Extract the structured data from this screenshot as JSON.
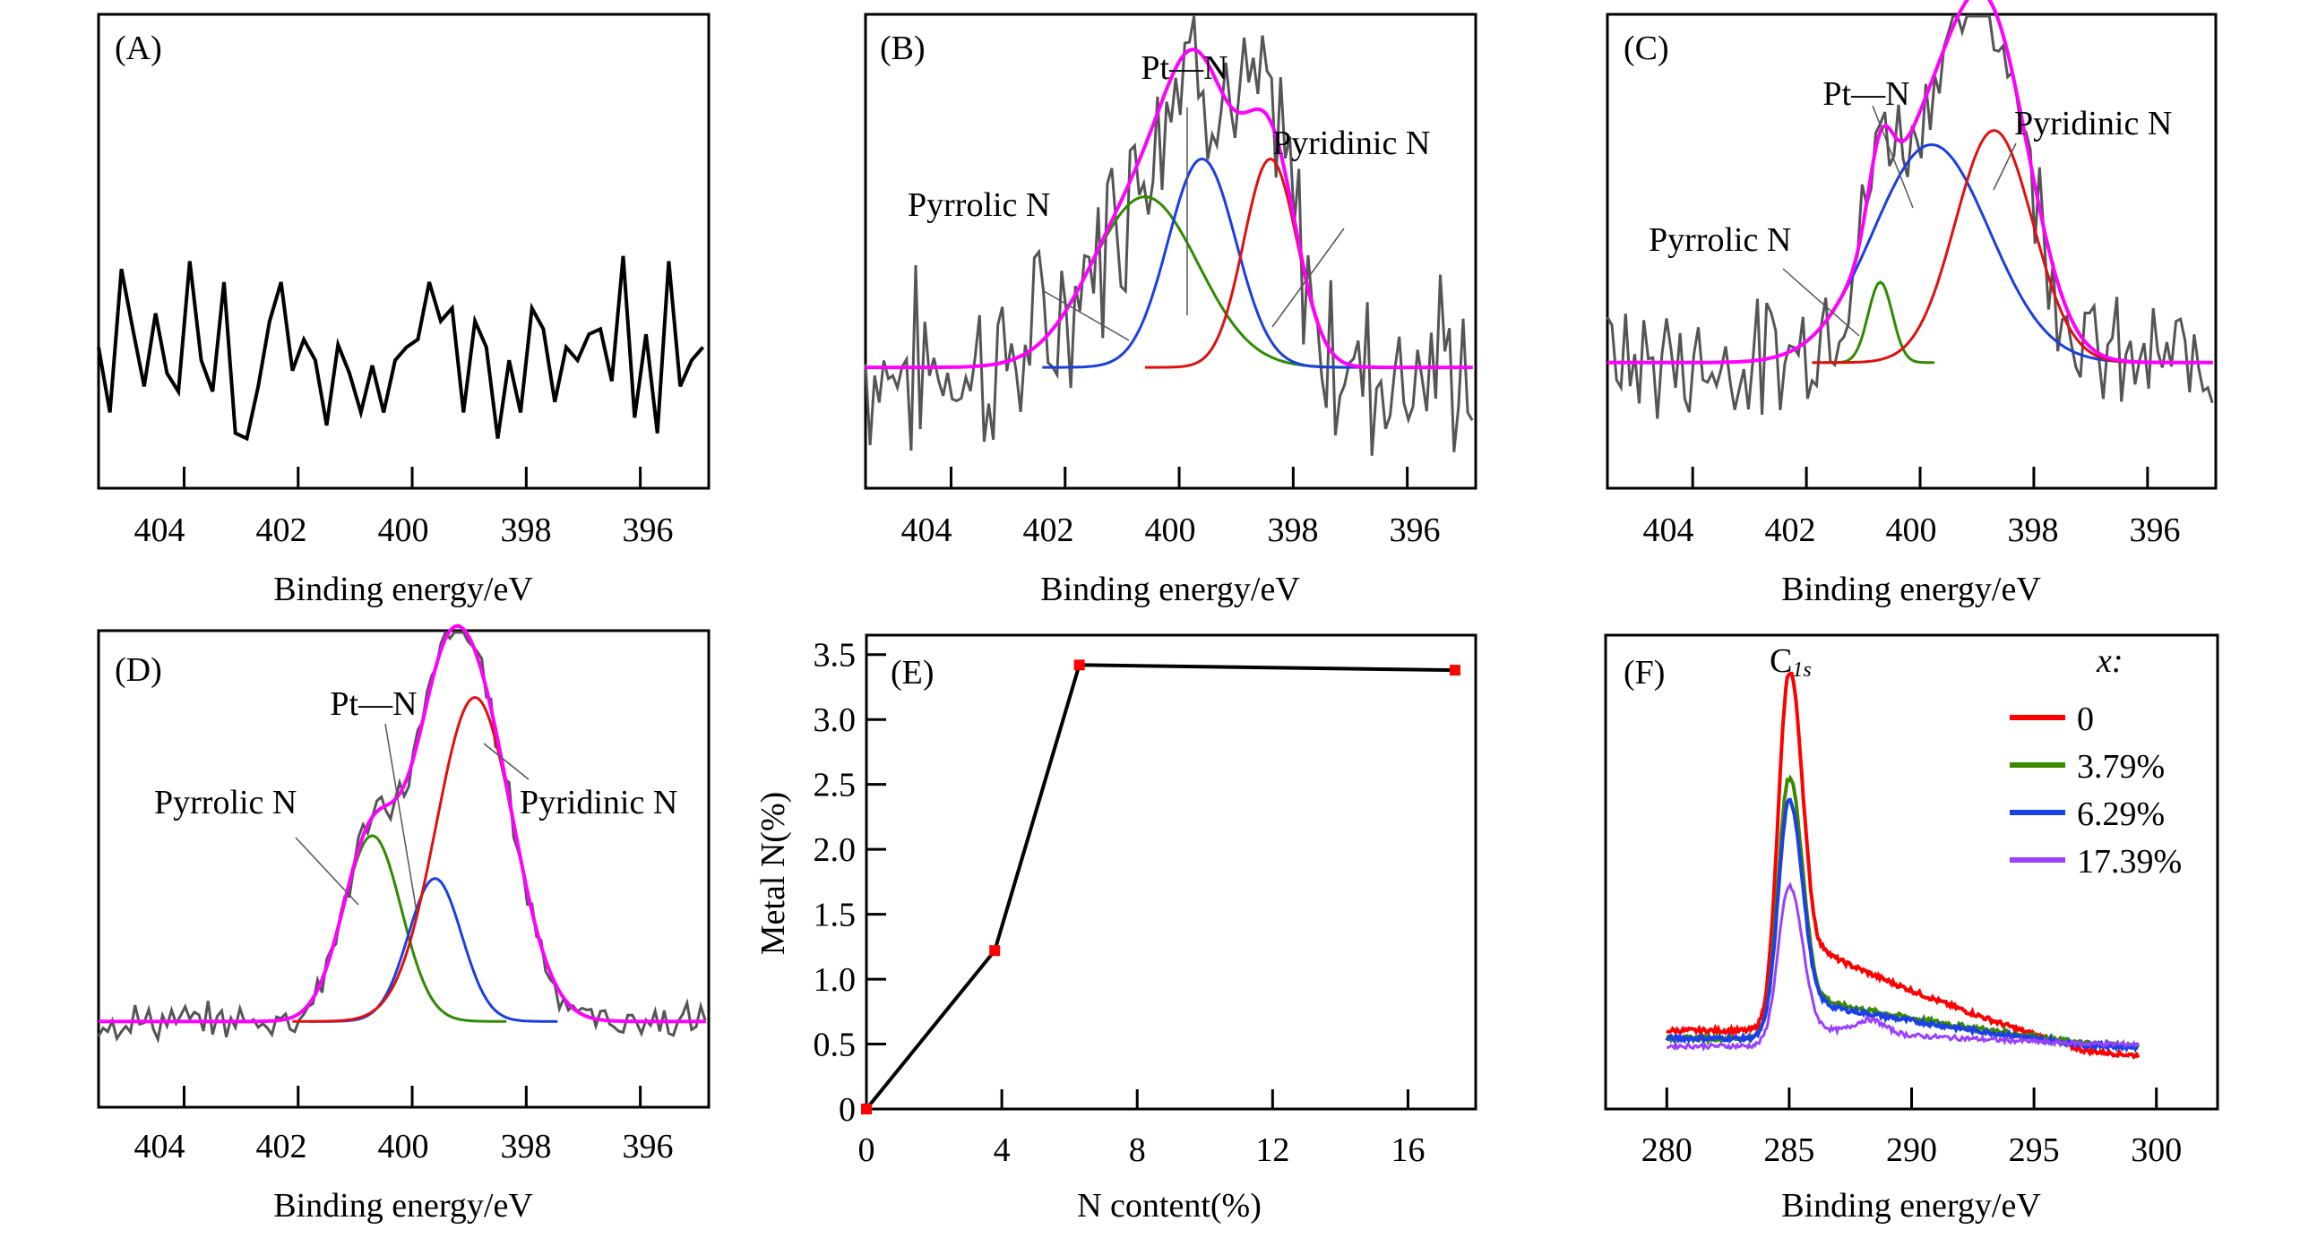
{
  "chart_data": [
    {
      "id": "A",
      "type": "line",
      "panel_label": "(A)",
      "xlabel": "Binding energy/eV",
      "ylabel": "",
      "xlim": [
        405.5,
        394.8
      ],
      "x_reversed": true,
      "xticks": [
        404,
        402,
        400,
        398,
        396
      ],
      "series": [
        {
          "name": "raw",
          "color": "#000000",
          "x": [
            405.5,
            405.3,
            405.1,
            404.9,
            404.7,
            404.5,
            404.3,
            404.1,
            403.9,
            403.7,
            403.5,
            403.3,
            403.1,
            402.9,
            402.7,
            402.5,
            402.3,
            402.1,
            401.9,
            401.7,
            401.5,
            401.3,
            401.1,
            400.9,
            400.7,
            400.5,
            400.3,
            400.1,
            399.9,
            399.7,
            399.5,
            399.3,
            399.1,
            398.9,
            398.7,
            398.5,
            398.3,
            398.1,
            397.9,
            397.7,
            397.5,
            397.3,
            397.1,
            396.9,
            396.7,
            396.5,
            396.3,
            396.1,
            395.9,
            395.7,
            395.5,
            395.3,
            395.1,
            394.9
          ],
          "y": [
            0.45,
            0.2,
            0.75,
            0.52,
            0.3,
            0.58,
            0.35,
            0.28,
            0.78,
            0.4,
            0.28,
            0.7,
            0.12,
            0.1,
            0.3,
            0.55,
            0.7,
            0.36,
            0.48,
            0.4,
            0.15,
            0.46,
            0.35,
            0.2,
            0.38,
            0.2,
            0.4,
            0.45,
            0.48,
            0.7,
            0.55,
            0.6,
            0.2,
            0.55,
            0.45,
            0.1,
            0.4,
            0.2,
            0.6,
            0.52,
            0.24,
            0.45,
            0.4,
            0.5,
            0.52,
            0.32,
            0.8,
            0.18,
            0.5,
            0.12,
            0.78,
            0.3,
            0.4,
            0.45
          ]
        }
      ]
    },
    {
      "id": "B",
      "type": "line",
      "panel_label": "(B)",
      "xlabel": "Binding energy/eV",
      "ylabel": "",
      "xlim": [
        405.5,
        394.8
      ],
      "x_reversed": true,
      "xticks": [
        404,
        402,
        400,
        398,
        396
      ],
      "annotations": [
        "Pt—N",
        "Pyridinic N",
        "Pyrrolic N"
      ],
      "series": [
        {
          "name": "raw",
          "color": "#555555",
          "role": "data"
        },
        {
          "name": "Pyrrolic N",
          "color": "#2e8b00",
          "center": 400.6,
          "height": 0.36,
          "fwhm": 2.2
        },
        {
          "name": "Pt—N",
          "color": "#1a3fe0",
          "center": 399.6,
          "height": 0.44,
          "fwhm": 1.4
        },
        {
          "name": "Pyridinic N",
          "color": "#e01010",
          "center": 398.4,
          "height": 0.44,
          "fwhm": 1.1
        },
        {
          "name": "envelope",
          "color": "#ff00ff"
        }
      ]
    },
    {
      "id": "C",
      "type": "line",
      "panel_label": "(C)",
      "xlabel": "Binding energy/eV",
      "ylabel": "",
      "xlim": [
        405.5,
        394.8
      ],
      "x_reversed": true,
      "xticks": [
        404,
        402,
        400,
        398,
        396
      ],
      "annotations": [
        "Pt—N",
        "Pyridinic N",
        "Pyrrolic N"
      ],
      "series": [
        {
          "name": "raw",
          "color": "#555555",
          "role": "data"
        },
        {
          "name": "Pyrrolic N",
          "color": "#2e8b00",
          "center": 400.7,
          "height": 0.17,
          "fwhm": 0.5
        },
        {
          "name": "Pt—N",
          "color": "#1a3fe0",
          "center": 399.8,
          "height": 0.46,
          "fwhm": 2.4
        },
        {
          "name": "Pyridinic N",
          "color": "#e01010",
          "center": 398.7,
          "height": 0.49,
          "fwhm": 1.6
        },
        {
          "name": "envelope",
          "color": "#ff00ff"
        }
      ]
    },
    {
      "id": "D",
      "type": "line",
      "panel_label": "(D)",
      "xlabel": "Binding energy/eV",
      "ylabel": "",
      "xlim": [
        405.5,
        394.8
      ],
      "x_reversed": true,
      "xticks": [
        404,
        402,
        400,
        398,
        396
      ],
      "annotations": [
        "Pt—N",
        "Pyridinic N",
        "Pyrrolic N"
      ],
      "series": [
        {
          "name": "raw",
          "color": "#555555",
          "role": "data"
        },
        {
          "name": "Pyrrolic N",
          "color": "#2e8b00",
          "center": 400.7,
          "height": 0.39,
          "fwhm": 1.2
        },
        {
          "name": "Pt—N",
          "color": "#1a3fe0",
          "center": 399.6,
          "height": 0.3,
          "fwhm": 1.1
        },
        {
          "name": "Pyridinic N",
          "color": "#e01010",
          "center": 398.9,
          "height": 0.68,
          "fwhm": 1.6
        },
        {
          "name": "envelope",
          "color": "#ff00ff"
        }
      ]
    },
    {
      "id": "E",
      "type": "line",
      "panel_label": "(E)",
      "xlabel": "N content(%)",
      "ylabel": "Metal N(%)",
      "xlim": [
        0,
        18
      ],
      "ylim": [
        0,
        3.65
      ],
      "xticks": [
        0,
        4,
        8,
        12,
        16
      ],
      "yticks": [
        0,
        0.5,
        1.0,
        1.5,
        2.0,
        2.5,
        3.0,
        3.5
      ],
      "ytick_labels": [
        "0",
        "0.5",
        "1.0",
        "1.5",
        "2.0",
        "2.5",
        "3.0",
        "3.5"
      ],
      "series": [
        {
          "name": "Metal N",
          "color": "#000000",
          "marker_color": "#ff0000",
          "x": [
            0,
            3.79,
            6.29,
            17.39
          ],
          "y": [
            0,
            1.22,
            3.42,
            3.38
          ]
        }
      ]
    },
    {
      "id": "F",
      "type": "line",
      "panel_label": "(F)",
      "xlabel": "Binding energy/eV",
      "ylabel": "",
      "xlim": [
        277.5,
        302.5
      ],
      "xticks": [
        280,
        285,
        290,
        295,
        300
      ],
      "annotation": "C1s",
      "legend_title": "x:",
      "legend_position": "top-right",
      "series": [
        {
          "name": "0",
          "color": "#ff0000",
          "peak_x": 285.0,
          "peak_y": 1.0,
          "base_low": 0.08,
          "tail": 0.27,
          "base_high": 0.14
        },
        {
          "name": "3.79%",
          "color": "#3a8a00",
          "peak_x": 285.0,
          "peak_y": 0.73,
          "base_low": 0.06,
          "tail": 0.15,
          "base_high": 0.1
        },
        {
          "name": "6.29%",
          "color": "#1a40e8",
          "peak_x": 285.0,
          "peak_y": 0.67,
          "base_low": 0.06,
          "tail": 0.14,
          "base_high": 0.09
        },
        {
          "name": "17.39%",
          "color": "#9a40ff",
          "peak_x": 285.0,
          "peak_y": 0.45,
          "base_low": 0.04,
          "tail": 0.08,
          "base_high": 0.07
        }
      ]
    }
  ],
  "labels": {
    "A": "(A)",
    "B": "(B)",
    "C": "(C)",
    "D": "(D)",
    "E": "(E)",
    "F": "(F)",
    "xlabel_be": "Binding energy/eV",
    "xlabel_n": "N content(%)",
    "ylabel_metal": "Metal N(%)",
    "ptn": "Pt—N",
    "pyridinic": "Pyridinic N",
    "pyrrolic": "Pyrrolic N",
    "c1s_main": "C",
    "c1s_sub": "1s",
    "legend_title": "x:",
    "legend": [
      "0",
      "3.79%",
      "6.29%",
      "17.39%"
    ],
    "ticks_be": [
      "404",
      "402",
      "400",
      "398",
      "396"
    ],
    "ticks_e_x": [
      "0",
      "4",
      "8",
      "12",
      "16"
    ],
    "ticks_e_y": [
      "0",
      "0.5",
      "1.0",
      "1.5",
      "2.0",
      "2.5",
      "3.0",
      "3.5"
    ],
    "ticks_f": [
      "280",
      "285",
      "290",
      "295",
      "300"
    ]
  }
}
